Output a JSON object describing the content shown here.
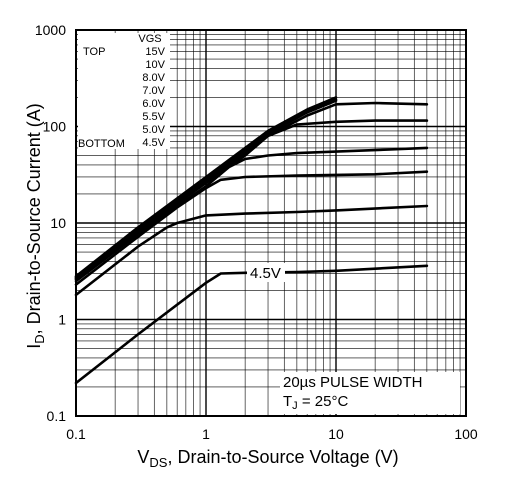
{
  "chart_data": {
    "type": "line",
    "xscale": "log",
    "yscale": "log",
    "xlim": [
      0.1,
      100
    ],
    "ylim": [
      0.1,
      1000
    ],
    "grid": true,
    "x_ticks": [
      "0.1",
      "1",
      "10",
      "100"
    ],
    "y_ticks": [
      "0.1",
      "1",
      "10",
      "100",
      "1000"
    ],
    "xlabel": {
      "sym": "V",
      "sub": "DS",
      "rest": ", Drain-to-Source Voltage (V)"
    },
    "ylabel": {
      "sym": "I",
      "sub": "D",
      "rest": ",  Drain-to-Source Current (A)"
    },
    "legend": {
      "header": "VGS",
      "top_label": "TOP",
      "bottom_label": "BOTTOM",
      "entries": [
        "15V",
        "10V",
        "8.0V",
        "7.0V",
        "6.0V",
        "5.5V",
        "5.0V",
        "4.5V"
      ]
    },
    "curve_label": "4.5V",
    "annotation": {
      "line1": "20µs PULSE WIDTH",
      "line2_sym": "T",
      "line2_sub": "J",
      "line2_rest": " = 25°C"
    },
    "series": [
      {
        "vgs": "15V",
        "x": [
          0.1,
          0.3,
          1.0,
          3.0,
          6.0,
          10.0
        ],
        "y": [
          2.8,
          9.0,
          30.0,
          90.0,
          150.0,
          200.0
        ]
      },
      {
        "vgs": "10V",
        "x": [
          0.1,
          0.3,
          1.0,
          3.0,
          6.0,
          10.0
        ],
        "y": [
          2.75,
          8.8,
          29.0,
          87.0,
          145.0,
          190.0
        ]
      },
      {
        "vgs": "8.0V",
        "x": [
          0.1,
          0.3,
          1.0,
          3.0,
          6.0,
          10.0
        ],
        "y": [
          2.7,
          8.6,
          28.0,
          84.0,
          140.0,
          185.0
        ]
      },
      {
        "vgs": "7.0V",
        "x": [
          0.1,
          0.3,
          1.0,
          3.0,
          6.0,
          10.0,
          20.0,
          50.0
        ],
        "y": [
          2.65,
          8.4,
          27.0,
          80.0,
          130.0,
          170.0,
          175.0,
          170.0
        ]
      },
      {
        "vgs": "6.0V",
        "x": [
          0.1,
          0.3,
          1.0,
          2.0,
          3.0,
          5.0,
          10.0,
          20.0,
          50.0
        ],
        "y": [
          2.6,
          8.1,
          26.0,
          50.0,
          80.0,
          105.0,
          112.0,
          115.0,
          115.0
        ]
      },
      {
        "vgs": "5.5V",
        "x": [
          0.1,
          0.3,
          0.6,
          1.0,
          1.5,
          2.0,
          3.0,
          5.0,
          10.0,
          20.0,
          50.0
        ],
        "y": [
          2.5,
          7.7,
          15.0,
          24.0,
          38.0,
          46.0,
          50.0,
          53.0,
          55.0,
          57.0,
          60.0
        ]
      },
      {
        "vgs": "5.0V",
        "x": [
          0.1,
          0.3,
          0.6,
          1.0,
          1.3,
          2.0,
          5.0,
          10.0,
          20.0,
          50.0
        ],
        "y": [
          2.3,
          7.2,
          14.5,
          23.0,
          28.0,
          30.0,
          31.0,
          31.5,
          32.0,
          34.0
        ]
      },
      {
        "vgs": "4.5V",
        "x": [
          0.1,
          0.3,
          0.5,
          0.6,
          1.0,
          2.0,
          5.0,
          10.0,
          50.0
        ],
        "y": [
          1.8,
          5.7,
          9.0,
          10.0,
          12.0,
          12.5,
          13.0,
          13.5,
          15.0
        ]
      },
      {
        "vgs": "4.5V",
        "x": [
          0.1,
          0.3,
          1.0,
          1.3,
          2.0,
          5.0,
          10.0,
          50.0
        ],
        "y": [
          0.22,
          0.7,
          2.4,
          3.0,
          3.05,
          3.1,
          3.2,
          3.6
        ]
      }
    ]
  }
}
